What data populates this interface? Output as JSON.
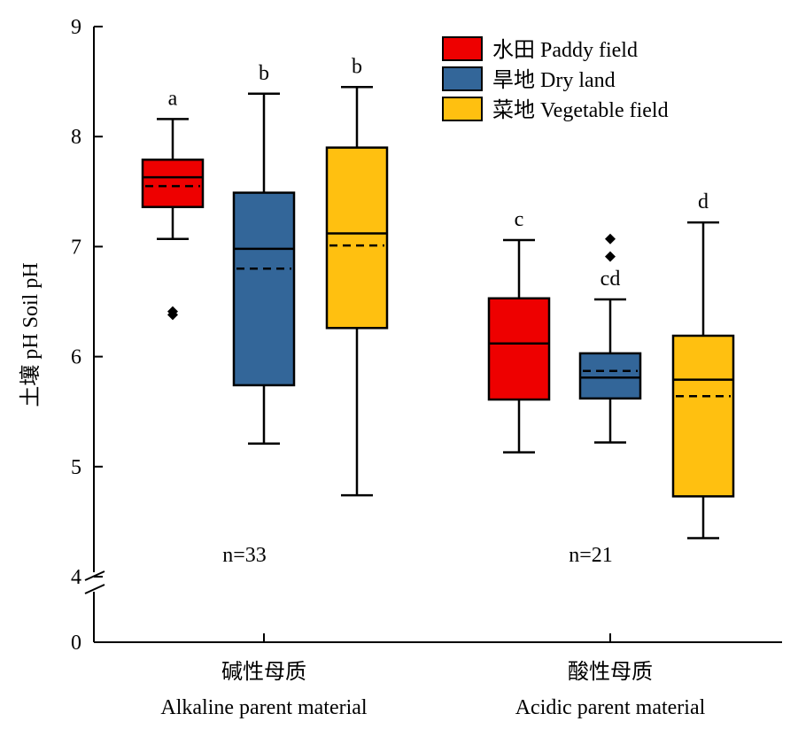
{
  "chart_data": {
    "type": "box",
    "ylabel": "土壤 pH Soil pH",
    "yticks": [
      "0",
      "4",
      "5",
      "6",
      "7",
      "8",
      "9"
    ],
    "y_axis_break": [
      0,
      4
    ],
    "ylim": [
      4,
      9
    ],
    "groups": [
      {
        "label_cn": "碱性母质",
        "label_en": "Alkaline parent material",
        "n_label": "n=33"
      },
      {
        "label_cn": "酸性母质",
        "label_en": "Acidic parent material",
        "n_label": "n=21"
      }
    ],
    "series": [
      {
        "name": "水田 Paddy field",
        "color": "#ee0000"
      },
      {
        "name": "旱地 Dry land",
        "color": "#336699"
      },
      {
        "name": "菜地 Vegetable field",
        "color": "#ffc010"
      }
    ],
    "boxes": [
      {
        "group": 0,
        "series": 0,
        "whisker_low": 7.07,
        "q1": 7.36,
        "median": 7.63,
        "mean": 7.55,
        "q3": 7.79,
        "whisker_high": 8.16,
        "outliers": [
          6.38,
          6.41
        ],
        "sig": "a"
      },
      {
        "group": 0,
        "series": 1,
        "whisker_low": 5.21,
        "q1": 5.74,
        "median": 6.98,
        "mean": 6.8,
        "q3": 7.49,
        "whisker_high": 8.39,
        "outliers": [],
        "sig": "b"
      },
      {
        "group": 0,
        "series": 2,
        "whisker_low": 4.74,
        "q1": 6.26,
        "median": 7.12,
        "mean": 7.01,
        "q3": 7.9,
        "whisker_high": 8.45,
        "outliers": [],
        "sig": "b"
      },
      {
        "group": 1,
        "series": 0,
        "whisker_low": 5.13,
        "q1": 5.61,
        "median": 6.12,
        "mean": 6.12,
        "q3": 6.53,
        "whisker_high": 7.06,
        "outliers": [],
        "sig": "c"
      },
      {
        "group": 1,
        "series": 1,
        "whisker_low": 5.22,
        "q1": 5.62,
        "median": 5.81,
        "mean": 5.87,
        "q3": 6.03,
        "whisker_high": 6.52,
        "outliers": [
          6.91,
          7.07
        ],
        "sig": "cd"
      },
      {
        "group": 1,
        "series": 2,
        "whisker_low": 4.35,
        "q1": 4.73,
        "median": 5.79,
        "mean": 5.64,
        "q3": 6.19,
        "whisker_high": 7.22,
        "outliers": [],
        "sig": "d"
      }
    ]
  }
}
